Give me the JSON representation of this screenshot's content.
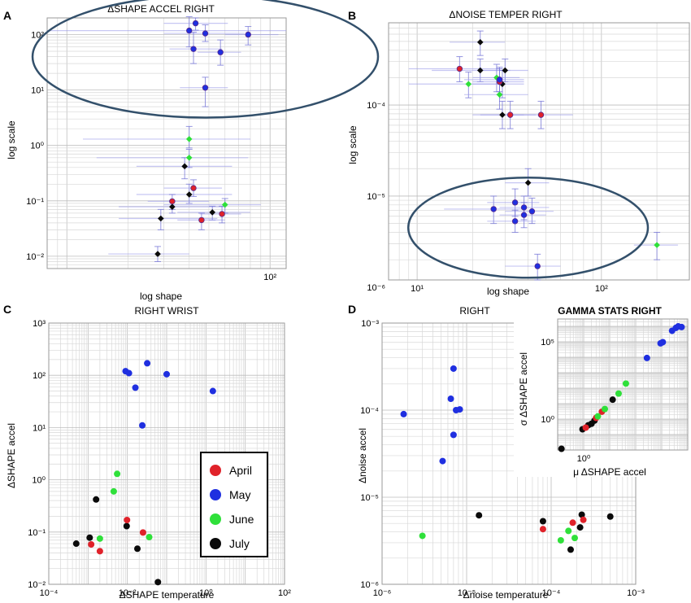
{
  "colors": {
    "April": "#e0222a",
    "May": "#1f2fe0",
    "June": "#2fe03a",
    "July": "#0a0a0a",
    "errbar": "#7373d6",
    "ring": "#33506b"
  },
  "chart_data": [
    {
      "panel": "A",
      "type": "scatter",
      "title": "ΔSHAPE ACCEL RIGHT",
      "xlabel": "log shape",
      "ylabel": "log scale",
      "xscale": "log",
      "yscale": "log",
      "xlim": [
        8,
        120
      ],
      "ylim": [
        0.006,
        200
      ],
      "xticks": [
        {
          "v": 100,
          "label": "10²"
        }
      ],
      "yticks": [
        {
          "v": 0.01,
          "label": "10⁻²"
        },
        {
          "v": 0.1,
          "label": "10⁻¹"
        },
        {
          "v": 1,
          "label": "10⁰"
        },
        {
          "v": 10,
          "label": "10¹"
        },
        {
          "v": 100,
          "label": "10²"
        }
      ],
      "highlight": {
        "cx": 48,
        "cy": 40,
        "rx": 0.85,
        "ry": 1.1
      },
      "points": [
        {
          "g": "May",
          "x": 40,
          "y": 118,
          "xe": [
            8,
            120
          ],
          "ye": [
            60,
            210
          ]
        },
        {
          "g": "May",
          "x": 43,
          "y": 160,
          "xe": [
            30,
            62
          ],
          "ye": [
            120,
            200
          ]
        },
        {
          "g": "May",
          "x": 48,
          "y": 105,
          "xe": [
            30,
            75
          ],
          "ye": [
            75,
            150
          ]
        },
        {
          "g": "May",
          "x": 42,
          "y": 55,
          "xe": [
            32,
            58
          ],
          "ye": [
            30,
            110
          ]
        },
        {
          "g": "May",
          "x": 57,
          "y": 48,
          "xe": [
            44,
            72
          ],
          "ye": [
            28,
            80
          ]
        },
        {
          "g": "May",
          "x": 78,
          "y": 100,
          "xe": [
            60,
            110
          ],
          "ye": [
            65,
            140
          ]
        },
        {
          "g": "May",
          "x": 48,
          "y": 11,
          "xe": [
            36,
            62
          ],
          "ye": [
            5,
            17
          ]
        },
        {
          "g": "June",
          "x": 40,
          "y": 1.3,
          "xe": [
            12,
            80
          ],
          "ye": [
            0.9,
            2.2
          ]
        },
        {
          "g": "June",
          "x": 40,
          "y": 0.6,
          "xe": [
            14,
            78
          ],
          "ye": [
            0.4,
            0.85
          ]
        },
        {
          "g": "June",
          "x": 60,
          "y": 0.085,
          "xe": [
            30,
            90
          ],
          "ye": [
            0.06,
            0.11
          ]
        },
        {
          "g": "July",
          "x": 38,
          "y": 0.42,
          "xe": [
            22,
            65
          ],
          "ye": [
            0.25,
            0.6
          ]
        },
        {
          "g": "July",
          "x": 40,
          "y": 0.13,
          "xe": [
            22,
            65
          ],
          "ye": [
            0.09,
            0.2
          ]
        },
        {
          "g": "July",
          "x": 33,
          "y": 0.078,
          "xe": [
            18,
            60
          ],
          "ye": [
            0.06,
            0.1
          ]
        },
        {
          "g": "July",
          "x": 29,
          "y": 0.048,
          "xe": [
            18,
            55
          ],
          "ye": [
            0.03,
            0.07
          ]
        },
        {
          "g": "July",
          "x": 52,
          "y": 0.062,
          "xe": [
            35,
            80
          ],
          "ye": [
            0.045,
            0.08
          ]
        },
        {
          "g": "July",
          "x": 28,
          "y": 0.011,
          "xe": [
            16,
            40
          ],
          "ye": [
            0.008,
            0.015
          ]
        },
        {
          "g": "April",
          "x": 33,
          "y": 0.098,
          "xe": [
            25,
            50
          ],
          "ye": [
            0.07,
            0.13
          ]
        },
        {
          "g": "April",
          "x": 42,
          "y": 0.17,
          "xe": [
            30,
            58
          ],
          "ye": [
            0.12,
            0.24
          ]
        },
        {
          "g": "April",
          "x": 46,
          "y": 0.045,
          "xe": [
            35,
            60
          ],
          "ye": [
            0.03,
            0.06
          ]
        },
        {
          "g": "April",
          "x": 58,
          "y": 0.058,
          "xe": [
            45,
            72
          ],
          "ye": [
            0.04,
            0.08
          ]
        }
      ]
    },
    {
      "panel": "B",
      "type": "scatter",
      "title": "ΔNOISE TEMPER RIGHT",
      "xlabel": "log shape",
      "ylabel": "log scale",
      "xscale": "log",
      "yscale": "log",
      "xlim": [
        7,
        300
      ],
      "ylim": [
        1.2e-06,
        0.0008
      ],
      "xticks": [
        {
          "v": 10,
          "label": "10¹"
        },
        {
          "v": 100,
          "label": "10²"
        }
      ],
      "yticks": [
        {
          "v": 1e-06,
          "label": "10⁻⁶"
        },
        {
          "v": 1e-05,
          "label": "10⁻⁵"
        },
        {
          "v": 0.0001,
          "label": "10⁻⁴"
        }
      ],
      "highlight": {
        "cx": 40,
        "cy": 4.5e-06,
        "rx": 0.65,
        "ry": 0.55
      },
      "points": [
        {
          "g": "July",
          "x": 22,
          "y": 0.00049,
          "xe": [
            15,
            30
          ],
          "ye": [
            0.00035,
            0.00065
          ]
        },
        {
          "g": "July",
          "x": 22,
          "y": 0.00024,
          "xe": [
            12,
            32
          ],
          "ye": [
            0.00018,
            0.00032
          ]
        },
        {
          "g": "July",
          "x": 30,
          "y": 0.00024,
          "xe": [
            22,
            40
          ],
          "ye": [
            0.00018,
            0.00032
          ]
        },
        {
          "g": "July",
          "x": 29,
          "y": 0.00017,
          "xe": [
            20,
            38
          ],
          "ye": [
            0.00012,
            0.00024
          ]
        },
        {
          "g": "July",
          "x": 29,
          "y": 7.8e-05,
          "xe": [
            20,
            38
          ],
          "ye": [
            5.5e-05,
            0.00011
          ]
        },
        {
          "g": "July",
          "x": 40,
          "y": 1.4e-05,
          "xe": [
            30,
            52
          ],
          "ye": [
            1e-05,
            2e-05
          ]
        },
        {
          "g": "April",
          "x": 17,
          "y": 0.00025,
          "xe": [
            9,
            28
          ],
          "ye": [
            0.00018,
            0.00034
          ]
        },
        {
          "g": "April",
          "x": 32,
          "y": 7.8e-05,
          "xe": [
            22,
            44
          ],
          "ye": [
            5.5e-05,
            0.00011
          ]
        },
        {
          "g": "April",
          "x": 47,
          "y": 7.8e-05,
          "xe": [
            32,
            70
          ],
          "ye": [
            5.5e-05,
            0.00011
          ]
        },
        {
          "g": "April",
          "x": 28,
          "y": 0.00018,
          "xe": [
            20,
            38
          ],
          "ye": [
            0.00013,
            0.00025
          ]
        },
        {
          "g": "June",
          "x": 27,
          "y": 0.0002,
          "xe": [
            20,
            36
          ],
          "ye": [
            0.00014,
            0.00028
          ]
        },
        {
          "g": "June",
          "x": 19,
          "y": 0.00017,
          "xe": [
            9,
            30
          ],
          "ye": [
            0.00012,
            0.00023
          ]
        },
        {
          "g": "June",
          "x": 28,
          "y": 0.00013,
          "xe": [
            18,
            40
          ],
          "ye": [
            9e-05,
            0.00018
          ]
        },
        {
          "g": "June",
          "x": 200,
          "y": 2.9e-06,
          "xe": [
            150,
            260
          ],
          "ye": [
            2e-06,
            4e-06
          ]
        },
        {
          "g": "May",
          "x": 28,
          "y": 0.00019,
          "xe": [
            18,
            38
          ],
          "ye": [
            0.00014,
            0.00026
          ]
        },
        {
          "g": "May",
          "x": 26,
          "y": 7.2e-06,
          "xe": [
            14,
            38
          ],
          "ye": [
            5e-06,
            1e-05
          ]
        },
        {
          "g": "May",
          "x": 34,
          "y": 8.5e-06,
          "xe": [
            24,
            46
          ],
          "ye": [
            6e-06,
            1.2e-05
          ]
        },
        {
          "g": "May",
          "x": 38,
          "y": 7.5e-06,
          "xe": [
            28,
            52
          ],
          "ye": [
            5.5e-06,
            1e-05
          ]
        },
        {
          "g": "May",
          "x": 42,
          "y": 6.8e-06,
          "xe": [
            30,
            55
          ],
          "ye": [
            5e-06,
            9.5e-06
          ]
        },
        {
          "g": "May",
          "x": 38,
          "y": 6.2e-06,
          "xe": [
            28,
            50
          ],
          "ye": [
            4.5e-06,
            8.5e-06
          ]
        },
        {
          "g": "May",
          "x": 34,
          "y": 5.3e-06,
          "xe": [
            24,
            44
          ],
          "ye": [
            4e-06,
            7e-06
          ]
        },
        {
          "g": "May",
          "x": 45,
          "y": 1.7e-06,
          "xe": [
            30,
            60
          ],
          "ye": [
            1.2e-06,
            2.3e-06
          ]
        }
      ]
    },
    {
      "panel": "C",
      "type": "scatter",
      "title": "RIGHT WRIST",
      "xlabel": "ΔSHAPE temperature",
      "ylabel": "ΔSHAPE accel",
      "xscale": "log",
      "yscale": "log",
      "xlim": [
        0.0001,
        100
      ],
      "ylim": [
        0.01,
        1000
      ],
      "xticks": [
        {
          "v": 0.0001,
          "label": "10⁻⁴"
        },
        {
          "v": 0.01,
          "label": "10⁻²"
        },
        {
          "v": 1,
          "label": "10⁰"
        },
        {
          "v": 100,
          "label": "10²"
        }
      ],
      "yticks": [
        {
          "v": 0.01,
          "label": "10⁻²"
        },
        {
          "v": 0.1,
          "label": "10⁻¹"
        },
        {
          "v": 1,
          "label": "10⁰"
        },
        {
          "v": 10,
          "label": "10¹"
        },
        {
          "v": 100,
          "label": "10²"
        },
        {
          "v": 1000,
          "label": "10³"
        }
      ],
      "legend": {
        "position": "bottom-center",
        "entries": [
          "April",
          "May",
          "June",
          "July"
        ]
      },
      "points": [
        {
          "g": "May",
          "x": 0.009,
          "y": 120
        },
        {
          "g": "May",
          "x": 0.011,
          "y": 110
        },
        {
          "g": "May",
          "x": 0.032,
          "y": 170
        },
        {
          "g": "May",
          "x": 0.016,
          "y": 58
        },
        {
          "g": "May",
          "x": 0.1,
          "y": 105
        },
        {
          "g": "May",
          "x": 1.5,
          "y": 50
        },
        {
          "g": "May",
          "x": 0.024,
          "y": 11
        },
        {
          "g": "June",
          "x": 0.0055,
          "y": 1.3
        },
        {
          "g": "June",
          "x": 0.0045,
          "y": 0.6
        },
        {
          "g": "June",
          "x": 0.002,
          "y": 0.075
        },
        {
          "g": "June",
          "x": 0.036,
          "y": 0.08
        },
        {
          "g": "July",
          "x": 0.0016,
          "y": 0.42
        },
        {
          "g": "July",
          "x": 0.0096,
          "y": 0.13
        },
        {
          "g": "July",
          "x": 0.0011,
          "y": 0.078
        },
        {
          "g": "July",
          "x": 0.0005,
          "y": 0.06
        },
        {
          "g": "July",
          "x": 0.018,
          "y": 0.048
        },
        {
          "g": "July",
          "x": 0.06,
          "y": 0.011
        },
        {
          "g": "April",
          "x": 0.0098,
          "y": 0.17
        },
        {
          "g": "April",
          "x": 0.025,
          "y": 0.098
        },
        {
          "g": "April",
          "x": 0.0012,
          "y": 0.058
        },
        {
          "g": "April",
          "x": 0.002,
          "y": 0.043
        }
      ]
    },
    {
      "panel": "D",
      "type": "scatter",
      "title": "RIGHT",
      "xlabel": "Δnoise temperature",
      "ylabel": "Δnoise accel",
      "xscale": "log",
      "yscale": "log",
      "xlim": [
        1e-06,
        0.001
      ],
      "ylim": [
        1e-06,
        0.001
      ],
      "xticks": [
        {
          "v": 1e-06,
          "label": "10⁻⁶"
        },
        {
          "v": 1e-05,
          "label": "10⁻⁵"
        },
        {
          "v": 0.0001,
          "label": "10⁻⁴"
        },
        {
          "v": 0.001,
          "label": "10⁻³"
        }
      ],
      "yticks": [
        {
          "v": 1e-06,
          "label": "10⁻⁶"
        },
        {
          "v": 1e-05,
          "label": "10⁻⁵"
        },
        {
          "v": 0.0001,
          "label": "10⁻⁴"
        },
        {
          "v": 0.001,
          "label": "10⁻³"
        }
      ],
      "points": [
        {
          "g": "May",
          "x": 1.8e-06,
          "y": 9e-05
        },
        {
          "g": "May",
          "x": 7e-06,
          "y": 0.0003
        },
        {
          "g": "May",
          "x": 6.5e-06,
          "y": 0.000135
        },
        {
          "g": "May",
          "x": 7.5e-06,
          "y": 0.0001
        },
        {
          "g": "May",
          "x": 8.3e-06,
          "y": 0.000102
        },
        {
          "g": "May",
          "x": 7e-06,
          "y": 5.2e-05
        },
        {
          "g": "May",
          "x": 5.2e-06,
          "y": 2.6e-05
        },
        {
          "g": "June",
          "x": 3e-06,
          "y": 3.6e-06
        },
        {
          "g": "June",
          "x": 0.00013,
          "y": 3.2e-06
        },
        {
          "g": "June",
          "x": 0.00016,
          "y": 4.1e-06
        },
        {
          "g": "June",
          "x": 0.00019,
          "y": 3.4e-06
        },
        {
          "g": "July",
          "x": 1.4e-05,
          "y": 6.2e-06
        },
        {
          "g": "July",
          "x": 8e-05,
          "y": 5.3e-06
        },
        {
          "g": "July",
          "x": 0.00017,
          "y": 2.5e-06
        },
        {
          "g": "July",
          "x": 0.00022,
          "y": 4.5e-06
        },
        {
          "g": "July",
          "x": 0.00023,
          "y": 6.3e-06
        },
        {
          "g": "July",
          "x": 0.0005,
          "y": 6e-06
        },
        {
          "g": "April",
          "x": 8e-05,
          "y": 4.3e-06
        },
        {
          "g": "April",
          "x": 0.00018,
          "y": 5.1e-06
        },
        {
          "g": "April",
          "x": 0.00024,
          "y": 5.5e-06
        }
      ]
    },
    {
      "panel": "D-inset",
      "type": "scatter",
      "title": "GAMMA STATS RIGHT",
      "xlabel": "μ ΔSHAPE accel",
      "ylabel": "σ ΔSHAPE accel",
      "xscale": "log",
      "yscale": "log",
      "xlim": [
        0.1,
        10000
      ],
      "ylim": [
        0.01,
        3000000
      ],
      "xticks": [
        {
          "v": 1,
          "label": "10⁰"
        }
      ],
      "yticks": [
        {
          "v": 1,
          "label": "10⁰"
        },
        {
          "v": 100000,
          "label": "10⁵"
        }
      ],
      "points": [
        {
          "g": "July",
          "x": 0.14,
          "y": 0.012
        },
        {
          "g": "July",
          "x": 0.9,
          "y": 0.22
        },
        {
          "g": "July",
          "x": 1.5,
          "y": 0.4
        },
        {
          "g": "July",
          "x": 2,
          "y": 0.5
        },
        {
          "g": "July",
          "x": 2.6,
          "y": 0.8
        },
        {
          "g": "July",
          "x": 13,
          "y": 18
        },
        {
          "g": "April",
          "x": 1.2,
          "y": 0.28
        },
        {
          "g": "April",
          "x": 3,
          "y": 1.2
        },
        {
          "g": "April",
          "x": 5,
          "y": 3
        },
        {
          "g": "June",
          "x": 3.5,
          "y": 1.5
        },
        {
          "g": "June",
          "x": 6.5,
          "y": 4.5
        },
        {
          "g": "June",
          "x": 22,
          "y": 45
        },
        {
          "g": "June",
          "x": 42,
          "y": 200
        },
        {
          "g": "May",
          "x": 270,
          "y": 9000
        },
        {
          "g": "May",
          "x": 900,
          "y": 80000
        },
        {
          "g": "May",
          "x": 1100,
          "y": 95000
        },
        {
          "g": "May",
          "x": 2500,
          "y": 520000
        },
        {
          "g": "May",
          "x": 3500,
          "y": 800000
        },
        {
          "g": "May",
          "x": 4300,
          "y": 1000000
        },
        {
          "g": "May",
          "x": 5800,
          "y": 900000
        }
      ]
    }
  ]
}
